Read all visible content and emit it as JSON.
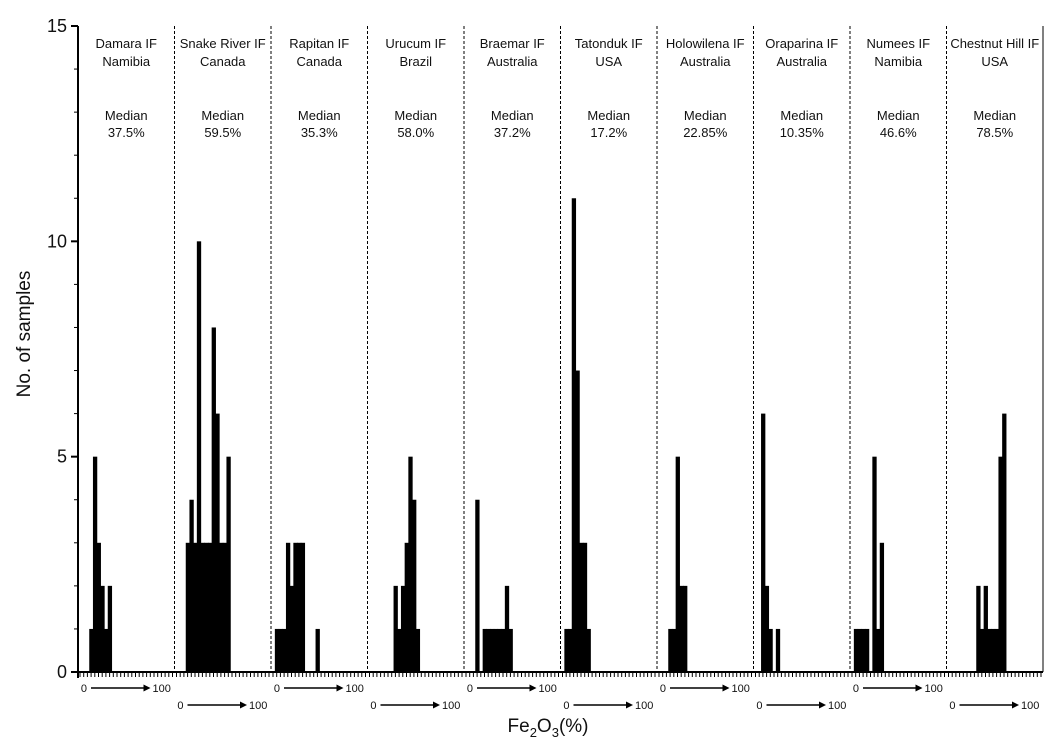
{
  "chart_data": {
    "type": "bar",
    "ylabel": "No. of samples",
    "xlabel_main": "Fe",
    "xlabel_sub": "2",
    "xlabel_mid": "O",
    "xlabel_sub2": "3",
    "xlabel_end": "(%)",
    "ylim": [
      0,
      15
    ],
    "yticks": [
      "0",
      "5",
      "10",
      "15"
    ],
    "xrange": [
      0,
      100
    ],
    "bin_width_percent": 4,
    "mini_axis": {
      "min": "0",
      "max": "100"
    },
    "median_label": "Median",
    "panels": [
      {
        "name": "Damara IF",
        "region": "Namibia",
        "median": "37.5%",
        "bins": [
          {
            "x": 10,
            "count": 1
          },
          {
            "x": 14,
            "count": 5
          },
          {
            "x": 18,
            "count": 3
          },
          {
            "x": 22,
            "count": 2
          },
          {
            "x": 26,
            "count": 1
          },
          {
            "x": 30,
            "count": 2
          }
        ]
      },
      {
        "name": "Snake River IF",
        "region": "Canada",
        "median": "59.5%",
        "bins": [
          {
            "x": 10,
            "count": 3
          },
          {
            "x": 14,
            "count": 4
          },
          {
            "x": 18,
            "count": 3
          },
          {
            "x": 22,
            "count": 10
          },
          {
            "x": 26,
            "count": 3
          },
          {
            "x": 30,
            "count": 3
          },
          {
            "x": 34,
            "count": 3
          },
          {
            "x": 38,
            "count": 8
          },
          {
            "x": 42,
            "count": 6
          },
          {
            "x": 46,
            "count": 3
          },
          {
            "x": 50,
            "count": 3
          },
          {
            "x": 54,
            "count": 5
          }
        ]
      },
      {
        "name": "Rapitan IF",
        "region": "Canada",
        "median": "35.3%",
        "bins": [
          {
            "x": 2,
            "count": 1
          },
          {
            "x": 6,
            "count": 1
          },
          {
            "x": 10,
            "count": 1
          },
          {
            "x": 14,
            "count": 3
          },
          {
            "x": 18,
            "count": 2
          },
          {
            "x": 22,
            "count": 3
          },
          {
            "x": 26,
            "count": 3
          },
          {
            "x": 30,
            "count": 3
          },
          {
            "x": 46,
            "count": 1
          }
        ]
      },
      {
        "name": "Urucum IF",
        "region": "Brazil",
        "median": "58.0%",
        "bins": [
          {
            "x": 26,
            "count": 2
          },
          {
            "x": 30,
            "count": 1
          },
          {
            "x": 34,
            "count": 2
          },
          {
            "x": 38,
            "count": 3
          },
          {
            "x": 42,
            "count": 5
          },
          {
            "x": 46,
            "count": 4
          },
          {
            "x": 50,
            "count": 1
          }
        ]
      },
      {
        "name": "Braemar IF",
        "region": "Australia",
        "median": "37.2%",
        "bins": [
          {
            "x": 10,
            "count": 4
          },
          {
            "x": 18,
            "count": 1
          },
          {
            "x": 22,
            "count": 1
          },
          {
            "x": 26,
            "count": 1
          },
          {
            "x": 30,
            "count": 1
          },
          {
            "x": 34,
            "count": 1
          },
          {
            "x": 38,
            "count": 1
          },
          {
            "x": 42,
            "count": 2
          },
          {
            "x": 46,
            "count": 1
          }
        ]
      },
      {
        "name": "Tatonduk IF",
        "region": "USA",
        "median": "17.2%",
        "bins": [
          {
            "x": 2,
            "count": 1
          },
          {
            "x": 6,
            "count": 1
          },
          {
            "x": 10,
            "count": 11
          },
          {
            "x": 14,
            "count": 7
          },
          {
            "x": 18,
            "count": 3
          },
          {
            "x": 22,
            "count": 3
          },
          {
            "x": 26,
            "count": 1
          }
        ]
      },
      {
        "name": "Holowilena IF",
        "region": "Australia",
        "median": "22.85%",
        "bins": [
          {
            "x": 10,
            "count": 1
          },
          {
            "x": 14,
            "count": 1
          },
          {
            "x": 18,
            "count": 5
          },
          {
            "x": 22,
            "count": 2
          },
          {
            "x": 26,
            "count": 2
          }
        ]
      },
      {
        "name": "Oraparina IF",
        "region": "Australia",
        "median": "10.35%",
        "bins": [
          {
            "x": 6,
            "count": 6
          },
          {
            "x": 10,
            "count": 2
          },
          {
            "x": 14,
            "count": 1
          },
          {
            "x": 22,
            "count": 1
          }
        ]
      },
      {
        "name": "Numees IF",
        "region": "Namibia",
        "median": "46.6%",
        "bins": [
          {
            "x": 2,
            "count": 1
          },
          {
            "x": 6,
            "count": 1
          },
          {
            "x": 10,
            "count": 1
          },
          {
            "x": 14,
            "count": 1
          },
          {
            "x": 22,
            "count": 5
          },
          {
            "x": 26,
            "count": 1
          },
          {
            "x": 30,
            "count": 3
          }
        ]
      },
      {
        "name": "Chestnut Hill IF",
        "region": "USA",
        "median": "78.5%",
        "bins": [
          {
            "x": 30,
            "count": 2
          },
          {
            "x": 34,
            "count": 1
          },
          {
            "x": 38,
            "count": 2
          },
          {
            "x": 42,
            "count": 1
          },
          {
            "x": 46,
            "count": 1
          },
          {
            "x": 50,
            "count": 1
          },
          {
            "x": 54,
            "count": 5
          },
          {
            "x": 58,
            "count": 6
          }
        ]
      }
    ]
  }
}
